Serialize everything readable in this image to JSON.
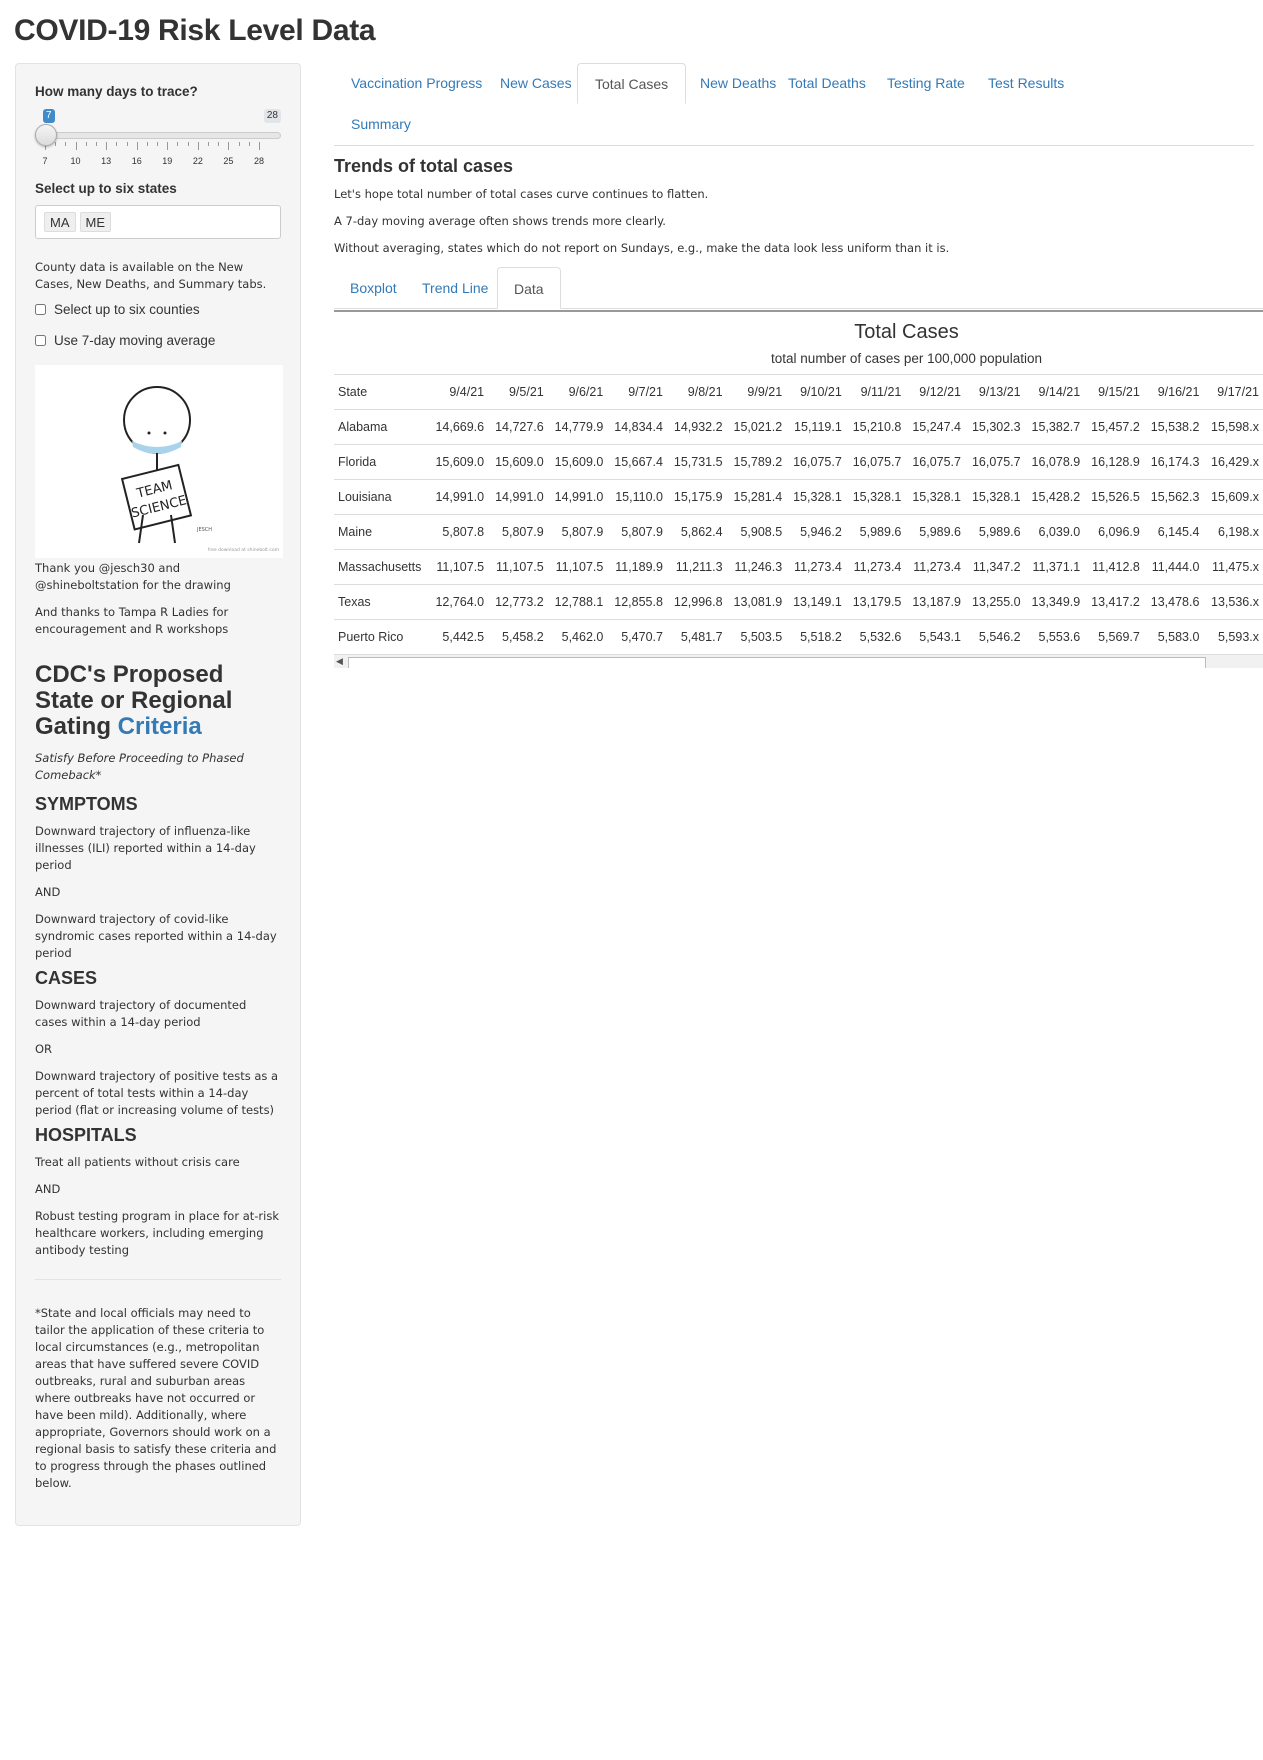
{
  "page": {
    "title": "COVID-19 Risk Level Data"
  },
  "sidebar": {
    "days_label": "How many days to trace?",
    "slider": {
      "min": "7",
      "max": "28",
      "value": 7,
      "tick_labels": [
        "7",
        "10",
        "13",
        "16",
        "19",
        "22",
        "25",
        "28"
      ]
    },
    "states_label": "Select up to six states",
    "selected_states": [
      "MA",
      "ME"
    ],
    "county_note": "County data is available on the New Cases, New Deaths, and Summary tabs.",
    "checkbox_counties": "Select up to six counties",
    "checkbox_moving_avg": "Use 7-day moving average",
    "drawing": {
      "sign_line1": "TEAM",
      "sign_line2": "SCIENCE",
      "signature": "JESCH",
      "credit": "free download at shinebolt.com"
    },
    "thanks1": "Thank you @jesch30 and @shineboltstation for the drawing",
    "thanks2": "And thanks to Tampa R Ladies for encouragement and R workshops",
    "cdc_heading": "CDC's Proposed State or Regional Gating",
    "cdc_link": "Criteria",
    "cdc_subtitle": "Satisfy Before Proceeding to Phased Comeback*",
    "symptoms": {
      "heading": "SYMPTOMS",
      "p1": "Downward trajectory of influenza-like illnesses (ILI) reported within a 14-day period",
      "conj": "AND",
      "p2": "Downward trajectory of covid-like syndromic cases reported within a 14-day period"
    },
    "cases": {
      "heading": "CASES",
      "p1": "Downward trajectory of documented cases within a 14-day period",
      "conj": "OR",
      "p2": "Downward trajectory of positive tests as a percent of total tests within a 14-day period (flat or increasing volume of tests)"
    },
    "hospitals": {
      "heading": "HOSPITALS",
      "p1": "Treat all patients without crisis care",
      "conj": "AND",
      "p2": "Robust testing program in place for at-risk healthcare workers, including emerging antibody testing"
    },
    "footnote": "*State and local officials may need to tailor the application of these criteria to local circumstances (e.g., metropolitan areas that have suffered severe COVID outbreaks, rural and suburban areas where outbreaks have not occurred or have been mild). Additionally, where appropriate, Governors should work on a regional basis to satisfy these criteria and to progress through the phases outlined below."
  },
  "main": {
    "tabs": [
      "Vaccination Progress",
      "New Cases",
      "Total Cases",
      "New Deaths",
      "Total Deaths",
      "Testing Rate",
      "Test Results",
      "Summary"
    ],
    "active_tab": "Total Cases",
    "heading": "Trends of total cases",
    "p1": "Let's hope total number of total cases curve continues to flatten.",
    "p2": "A 7-day moving average often shows trends more clearly.",
    "p3": "Without averaging, states which do not report on Sundays, e.g., make the data look less uniform than it is.",
    "subtabs": [
      "Boxplot",
      "Trend Line",
      "Data"
    ],
    "active_subtab": "Data",
    "table": {
      "title": "Total Cases",
      "subtitle": "total number of cases per 100,000 population",
      "state_header": "State",
      "dates": [
        "9/4/21",
        "9/5/21",
        "9/6/21",
        "9/7/21",
        "9/8/21",
        "9/9/21",
        "9/10/21",
        "9/11/21",
        "9/12/21",
        "9/13/21",
        "9/14/21",
        "9/15/21",
        "9/16/21",
        "9/17/21"
      ],
      "rows": [
        {
          "state": "Alabama",
          "values": [
            "14,669.6",
            "14,727.6",
            "14,779.9",
            "14,834.4",
            "14,932.2",
            "15,021.2",
            "15,119.1",
            "15,210.8",
            "15,247.4",
            "15,302.3",
            "15,382.7",
            "15,457.2",
            "15,538.2",
            "15,598.x"
          ]
        },
        {
          "state": "Florida",
          "values": [
            "15,609.0",
            "15,609.0",
            "15,609.0",
            "15,667.4",
            "15,731.5",
            "15,789.2",
            "16,075.7",
            "16,075.7",
            "16,075.7",
            "16,075.7",
            "16,078.9",
            "16,128.9",
            "16,174.3",
            "16,429.x"
          ]
        },
        {
          "state": "Louisiana",
          "values": [
            "14,991.0",
            "14,991.0",
            "14,991.0",
            "15,110.0",
            "15,175.9",
            "15,281.4",
            "15,328.1",
            "15,328.1",
            "15,328.1",
            "15,328.1",
            "15,428.2",
            "15,526.5",
            "15,562.3",
            "15,609.x"
          ]
        },
        {
          "state": "Maine",
          "values": [
            "5,807.8",
            "5,807.9",
            "5,807.9",
            "5,807.9",
            "5,862.4",
            "5,908.5",
            "5,946.2",
            "5,989.6",
            "5,989.6",
            "5,989.6",
            "6,039.0",
            "6,096.9",
            "6,145.4",
            "6,198.x"
          ]
        },
        {
          "state": "Massachusetts",
          "values": [
            "11,107.5",
            "11,107.5",
            "11,107.5",
            "11,189.9",
            "11,211.3",
            "11,246.3",
            "11,273.4",
            "11,273.4",
            "11,273.4",
            "11,347.2",
            "11,371.1",
            "11,412.8",
            "11,444.0",
            "11,475.x"
          ]
        },
        {
          "state": "Texas",
          "values": [
            "12,764.0",
            "12,773.2",
            "12,788.1",
            "12,855.8",
            "12,996.8",
            "13,081.9",
            "13,149.1",
            "13,179.5",
            "13,187.9",
            "13,255.0",
            "13,349.9",
            "13,417.2",
            "13,478.6",
            "13,536.x"
          ]
        },
        {
          "state": "Puerto Rico",
          "values": [
            "5,442.5",
            "5,458.2",
            "5,462.0",
            "5,470.7",
            "5,481.7",
            "5,503.5",
            "5,518.2",
            "5,532.6",
            "5,543.1",
            "5,546.2",
            "5,553.6",
            "5,569.7",
            "5,583.0",
            "5,593.x"
          ]
        }
      ]
    }
  },
  "colors": {
    "link": "#337ab7",
    "slider_value": "#428bca",
    "mask": "#a9d3ea"
  }
}
